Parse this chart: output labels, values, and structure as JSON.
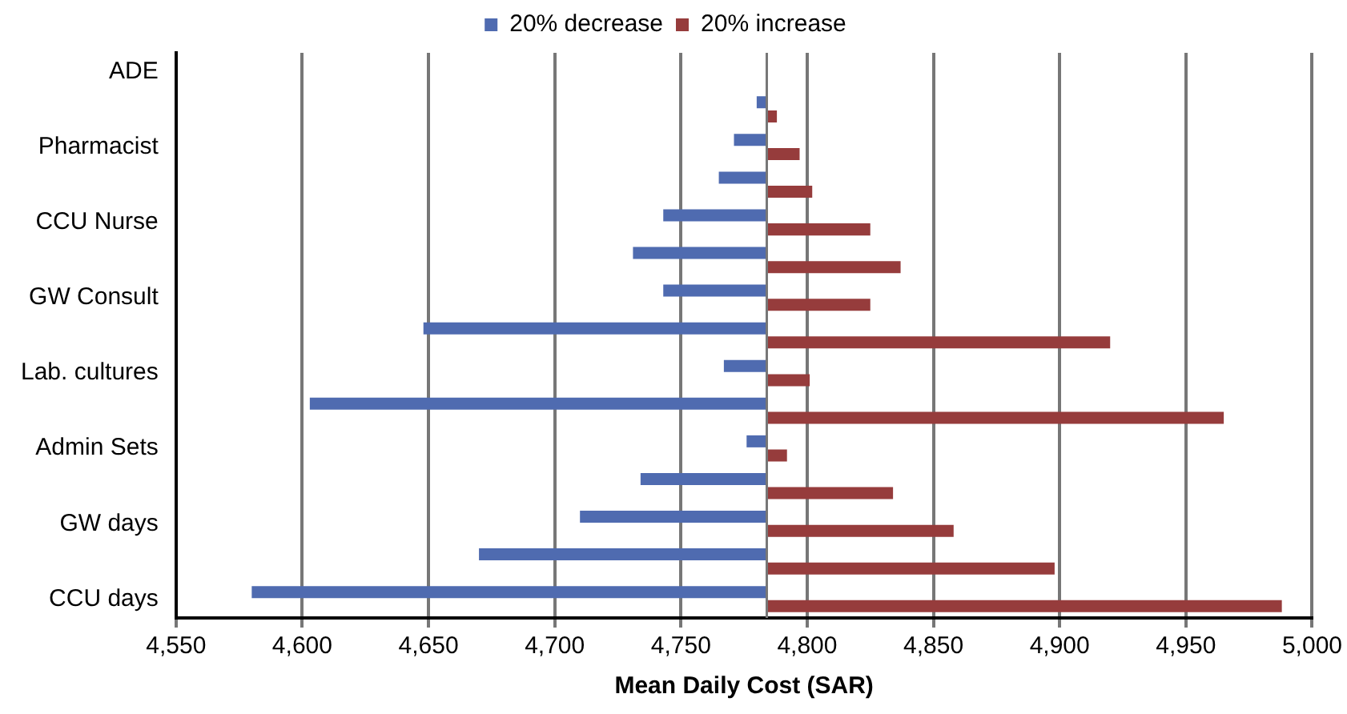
{
  "chart_data": {
    "type": "bar",
    "orientation": "horizontal",
    "xlabel": "Mean Daily Cost (SAR)",
    "categories": [
      "ADE",
      null,
      "Pharmacist",
      null,
      "CCU Nurse",
      null,
      "GW Consult",
      null,
      "Lab. cultures",
      null,
      "Admin Sets",
      null,
      "GW days",
      null,
      "CCU days"
    ],
    "series": [
      {
        "name": "20% decrease",
        "color": "#4f6bb0",
        "base": [
          null,
          4784,
          4784,
          4784,
          4784,
          4784,
          4784,
          4784,
          4784,
          4784,
          4784,
          4784,
          4784,
          4784,
          4784
        ],
        "values": [
          null,
          -4,
          -13,
          -19,
          -41,
          -53,
          -41,
          -136,
          -17,
          -181,
          -8,
          -50,
          -74,
          -114,
          -204
        ]
      },
      {
        "name": "20% increase",
        "color": "#963c3c",
        "base": [
          null,
          4784,
          4784,
          4784,
          4784,
          4784,
          4784,
          4784,
          4784,
          4784,
          4784,
          4784,
          4784,
          4784,
          4784
        ],
        "values": [
          null,
          4,
          13,
          18,
          41,
          53,
          41,
          136,
          17,
          181,
          8,
          50,
          74,
          114,
          204
        ]
      }
    ],
    "xlim": [
      4550,
      5000
    ],
    "xticks": [
      {
        "value": 4550,
        "label": "4,550"
      },
      {
        "value": 4600,
        "label": "4,600"
      },
      {
        "value": 4650,
        "label": "4,650"
      },
      {
        "value": 4700,
        "label": "4,700"
      },
      {
        "value": 4750,
        "label": "4,750"
      },
      {
        "value": 4800,
        "label": "4,800"
      },
      {
        "value": 4850,
        "label": "4,850"
      },
      {
        "value": 4900,
        "label": "4,900"
      },
      {
        "value": 4950,
        "label": "4,950"
      },
      {
        "value": 5000,
        "label": "5,000"
      }
    ],
    "ref_lines": [
      {
        "axis": "x",
        "value": 4784,
        "color": "#777777"
      }
    ],
    "grid": "x",
    "legend": "top"
  }
}
